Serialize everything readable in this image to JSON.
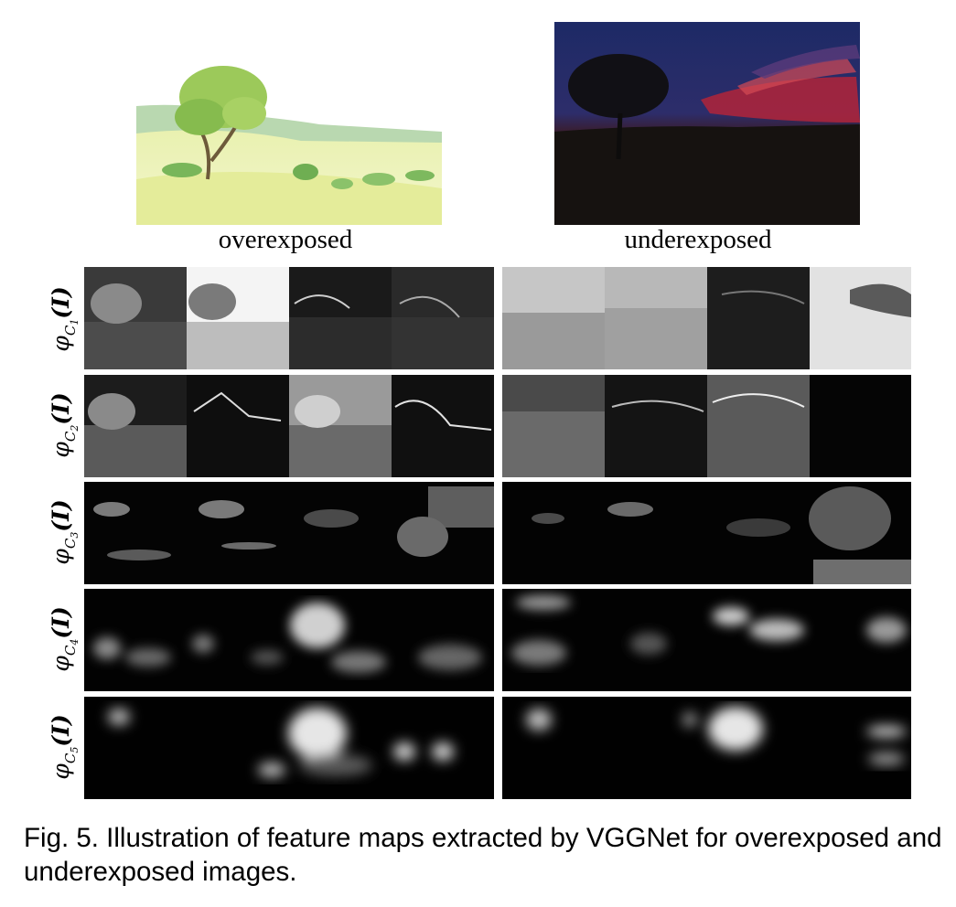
{
  "images": {
    "over_caption": "overexposed",
    "under_caption": "underexposed"
  },
  "rows": [
    {
      "prefix": "φ",
      "sub": "C",
      "subsub": "1",
      "arg": "(I)"
    },
    {
      "prefix": "φ",
      "sub": "C",
      "subsub": "2",
      "arg": "(I)"
    },
    {
      "prefix": "φ",
      "sub": "C",
      "subsub": "3",
      "arg": "(I)"
    },
    {
      "prefix": "φ",
      "sub": "C",
      "subsub": "4",
      "arg": "(I)"
    },
    {
      "prefix": "φ",
      "sub": "C",
      "subsub": "5",
      "arg": "(I)"
    }
  ],
  "caption": "Fig. 5. Illustration of feature maps extracted by VGGNet for overexposed and underexposed images."
}
